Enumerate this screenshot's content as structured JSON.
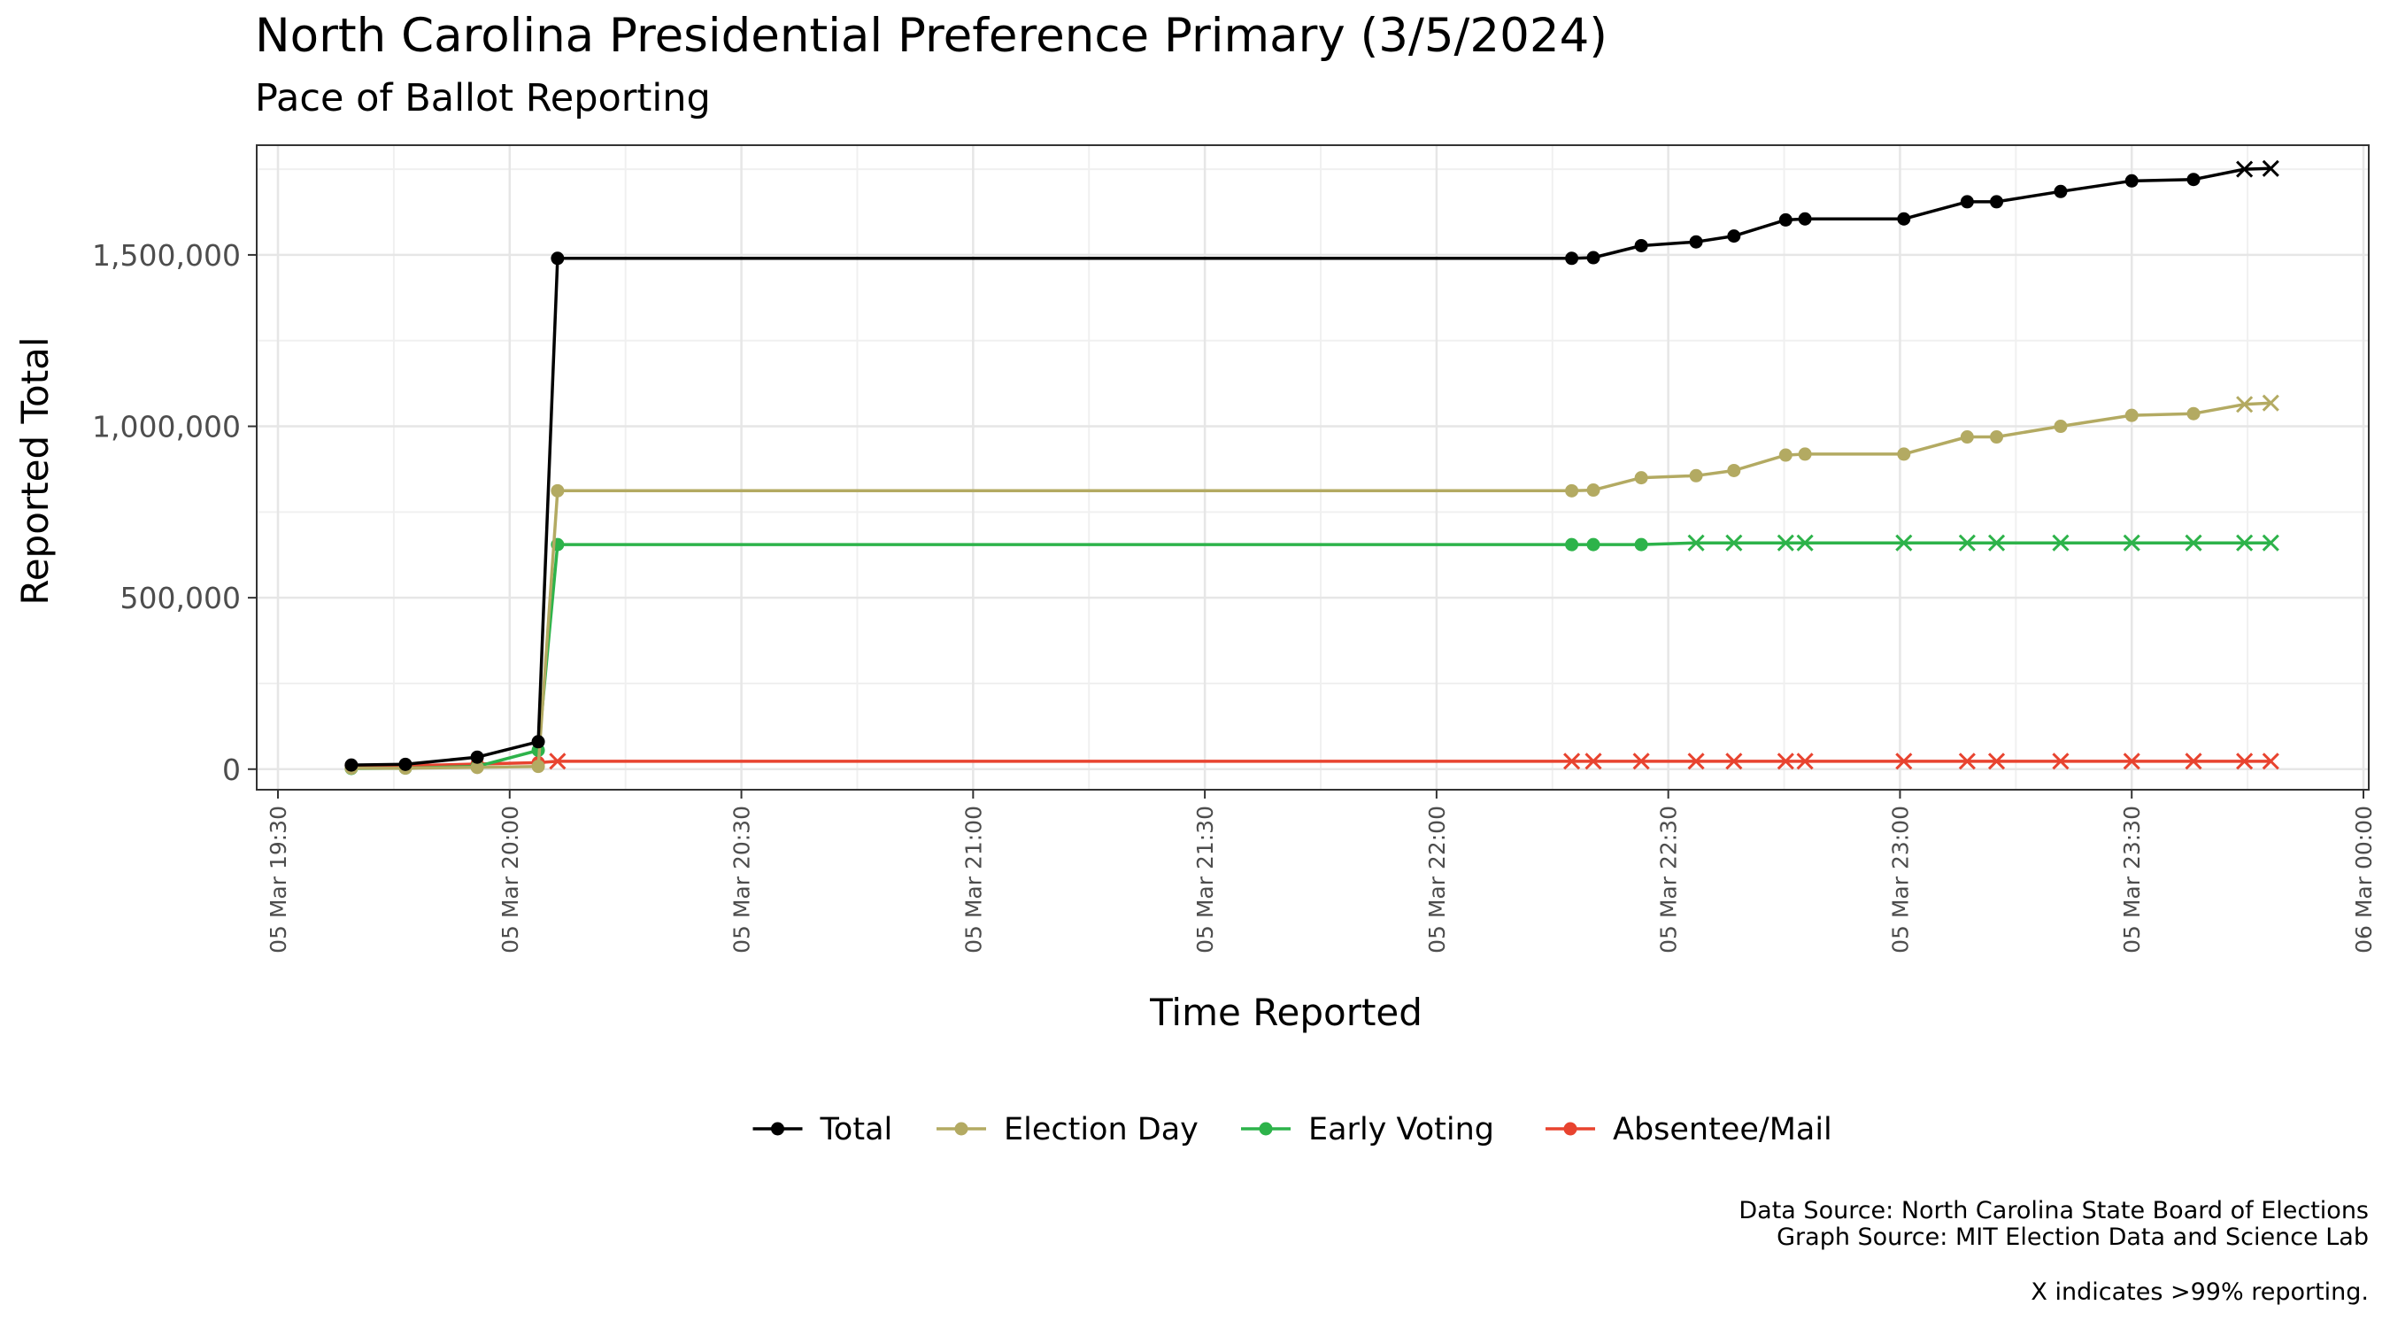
{
  "chart_data": {
    "type": "line",
    "title": "North Carolina Presidential Preference Primary (3/5/2024)",
    "subtitle": "Pace of Ballot Reporting",
    "xlabel": "Time Reported",
    "ylabel": "Reported Total",
    "x_unit": "minutes after 05 Mar 19:30",
    "xlim": [
      0,
      270
    ],
    "ylim": [
      -60000,
      1820000
    ],
    "x_ticks": [
      {
        "value": 0,
        "label": "05 Mar 19:30"
      },
      {
        "value": 30,
        "label": "05 Mar 20:00"
      },
      {
        "value": 60,
        "label": "05 Mar 20:30"
      },
      {
        "value": 90,
        "label": "05 Mar 21:00"
      },
      {
        "value": 120,
        "label": "05 Mar 21:30"
      },
      {
        "value": 150,
        "label": "05 Mar 22:00"
      },
      {
        "value": 180,
        "label": "05 Mar 22:30"
      },
      {
        "value": 210,
        "label": "05 Mar 23:00"
      },
      {
        "value": 240,
        "label": "05 Mar 23:30"
      },
      {
        "value": 270,
        "label": "06 Mar 00:00"
      }
    ],
    "y_ticks": [
      {
        "value": 0,
        "label": "0"
      },
      {
        "value": 500000,
        "label": "500,000"
      },
      {
        "value": 1000000,
        "label": "1,000,000"
      },
      {
        "value": 1500000,
        "label": "1,500,000"
      }
    ],
    "grid": true,
    "legend_position": "bottom",
    "marker_note": "X indicates >99% reporting.",
    "series": [
      {
        "name": "Total",
        "color": "#000000",
        "points": [
          {
            "x": 9.5,
            "y": 12000,
            "m": "dot"
          },
          {
            "x": 16.5,
            "y": 14000,
            "m": "dot"
          },
          {
            "x": 25.8,
            "y": 35000,
            "m": "dot"
          },
          {
            "x": 33.7,
            "y": 80000,
            "m": "dot"
          },
          {
            "x": 36.2,
            "y": 1490000,
            "m": "dot"
          },
          {
            "x": 167.5,
            "y": 1490000,
            "m": "dot"
          },
          {
            "x": 170.3,
            "y": 1492000,
            "m": "dot"
          },
          {
            "x": 176.5,
            "y": 1527000,
            "m": "dot"
          },
          {
            "x": 183.6,
            "y": 1538000,
            "m": "dot"
          },
          {
            "x": 188.5,
            "y": 1555000,
            "m": "dot"
          },
          {
            "x": 195.2,
            "y": 1602000,
            "m": "dot"
          },
          {
            "x": 197.7,
            "y": 1605000,
            "m": "dot"
          },
          {
            "x": 210.5,
            "y": 1605000,
            "m": "dot"
          },
          {
            "x": 218.7,
            "y": 1655000,
            "m": "dot"
          },
          {
            "x": 222.5,
            "y": 1655000,
            "m": "dot"
          },
          {
            "x": 230.8,
            "y": 1685000,
            "m": "dot"
          },
          {
            "x": 240.0,
            "y": 1716000,
            "m": "dot"
          },
          {
            "x": 248.0,
            "y": 1720000,
            "m": "dot"
          },
          {
            "x": 254.6,
            "y": 1750000,
            "m": "x"
          },
          {
            "x": 258.0,
            "y": 1752000,
            "m": "x"
          }
        ]
      },
      {
        "name": "Election Day",
        "color": "#b3aa62",
        "points": [
          {
            "x": 9.5,
            "y": 3000,
            "m": "dot"
          },
          {
            "x": 16.5,
            "y": 3000,
            "m": "dot"
          },
          {
            "x": 25.8,
            "y": 5000,
            "m": "dot"
          },
          {
            "x": 33.7,
            "y": 8000,
            "m": "dot"
          },
          {
            "x": 36.2,
            "y": 812000,
            "m": "dot"
          },
          {
            "x": 167.5,
            "y": 812000,
            "m": "dot"
          },
          {
            "x": 170.3,
            "y": 814000,
            "m": "dot"
          },
          {
            "x": 176.5,
            "y": 850000,
            "m": "dot"
          },
          {
            "x": 183.6,
            "y": 856000,
            "m": "dot"
          },
          {
            "x": 188.5,
            "y": 871000,
            "m": "dot"
          },
          {
            "x": 195.2,
            "y": 916000,
            "m": "dot"
          },
          {
            "x": 197.7,
            "y": 919000,
            "m": "dot"
          },
          {
            "x": 210.5,
            "y": 919000,
            "m": "dot"
          },
          {
            "x": 218.7,
            "y": 969000,
            "m": "dot"
          },
          {
            "x": 222.5,
            "y": 969000,
            "m": "dot"
          },
          {
            "x": 230.8,
            "y": 1000000,
            "m": "dot"
          },
          {
            "x": 240.0,
            "y": 1032000,
            "m": "dot"
          },
          {
            "x": 248.0,
            "y": 1037000,
            "m": "dot"
          },
          {
            "x": 254.6,
            "y": 1064000,
            "m": "x"
          },
          {
            "x": 258.0,
            "y": 1068000,
            "m": "x"
          }
        ]
      },
      {
        "name": "Early Voting",
        "color": "#2db34a",
        "points": [
          {
            "x": 9.5,
            "y": 2000,
            "m": "dot"
          },
          {
            "x": 16.5,
            "y": 3000,
            "m": "dot"
          },
          {
            "x": 25.8,
            "y": 8000,
            "m": "dot"
          },
          {
            "x": 33.7,
            "y": 55000,
            "m": "dot"
          },
          {
            "x": 36.2,
            "y": 655000,
            "m": "dot"
          },
          {
            "x": 167.5,
            "y": 655000,
            "m": "dot"
          },
          {
            "x": 170.3,
            "y": 655000,
            "m": "dot"
          },
          {
            "x": 176.5,
            "y": 655000,
            "m": "dot"
          },
          {
            "x": 183.6,
            "y": 660000,
            "m": "x"
          },
          {
            "x": 188.5,
            "y": 660000,
            "m": "x"
          },
          {
            "x": 195.2,
            "y": 660000,
            "m": "x"
          },
          {
            "x": 197.7,
            "y": 660000,
            "m": "x"
          },
          {
            "x": 210.5,
            "y": 660000,
            "m": "x"
          },
          {
            "x": 218.7,
            "y": 660000,
            "m": "x"
          },
          {
            "x": 222.5,
            "y": 660000,
            "m": "x"
          },
          {
            "x": 230.8,
            "y": 660000,
            "m": "x"
          },
          {
            "x": 240.0,
            "y": 660000,
            "m": "x"
          },
          {
            "x": 248.0,
            "y": 660000,
            "m": "x"
          },
          {
            "x": 254.6,
            "y": 660000,
            "m": "x"
          },
          {
            "x": 258.0,
            "y": 660000,
            "m": "x"
          }
        ]
      },
      {
        "name": "Absentee/Mail",
        "color": "#e8432f",
        "points": [
          {
            "x": 9.5,
            "y": 10000,
            "m": "dot"
          },
          {
            "x": 16.5,
            "y": 10000,
            "m": "dot"
          },
          {
            "x": 25.8,
            "y": 15000,
            "m": "dot"
          },
          {
            "x": 33.7,
            "y": 19000,
            "m": "dot"
          },
          {
            "x": 36.2,
            "y": 23000,
            "m": "x"
          },
          {
            "x": 167.5,
            "y": 23000,
            "m": "x"
          },
          {
            "x": 170.3,
            "y": 23000,
            "m": "x"
          },
          {
            "x": 176.5,
            "y": 23000,
            "m": "x"
          },
          {
            "x": 183.6,
            "y": 23000,
            "m": "x"
          },
          {
            "x": 188.5,
            "y": 23000,
            "m": "x"
          },
          {
            "x": 195.2,
            "y": 23000,
            "m": "x"
          },
          {
            "x": 197.7,
            "y": 23000,
            "m": "x"
          },
          {
            "x": 210.5,
            "y": 23000,
            "m": "x"
          },
          {
            "x": 218.7,
            "y": 23000,
            "m": "x"
          },
          {
            "x": 222.5,
            "y": 23000,
            "m": "x"
          },
          {
            "x": 230.8,
            "y": 23000,
            "m": "x"
          },
          {
            "x": 240.0,
            "y": 23000,
            "m": "x"
          },
          {
            "x": 248.0,
            "y": 23000,
            "m": "x"
          },
          {
            "x": 254.6,
            "y": 23000,
            "m": "x"
          },
          {
            "x": 258.0,
            "y": 23000,
            "m": "x"
          }
        ]
      }
    ]
  },
  "captions": {
    "data_source": "Data Source: North Carolina State Board of Elections",
    "graph_source": "Graph Source: MIT Election Data and Science Lab",
    "note": "X indicates >99% reporting."
  }
}
